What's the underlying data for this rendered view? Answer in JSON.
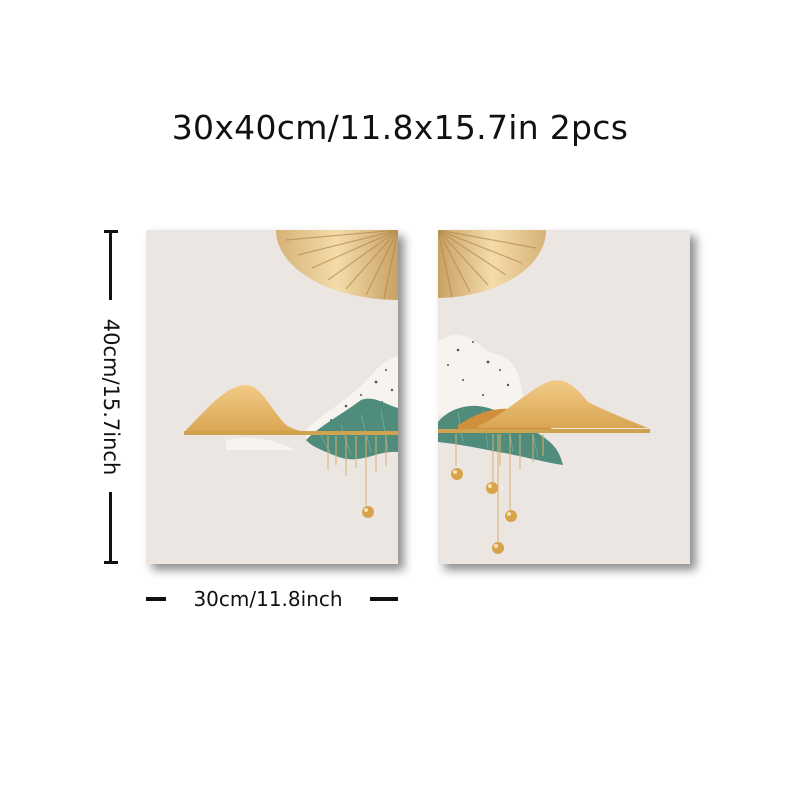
{
  "title": "30x40cm/11.8x15.7in 2pcs",
  "height_label": "40cm/15.7inch",
  "width_label": "30cm/11.8inch",
  "panels": [
    {
      "name": "left-panel",
      "description_icon": "fan-mountain-art-icon"
    },
    {
      "name": "right-panel",
      "description_icon": "fan-mountain-art-icon"
    }
  ],
  "colors": {
    "background": "#ffffff",
    "canvas": "#ebe6e2",
    "gold": "#e3b567",
    "gold_dark": "#c89a4a",
    "teal": "#4f8c7c",
    "speckle": "#f6f3ee",
    "text": "#111111"
  }
}
